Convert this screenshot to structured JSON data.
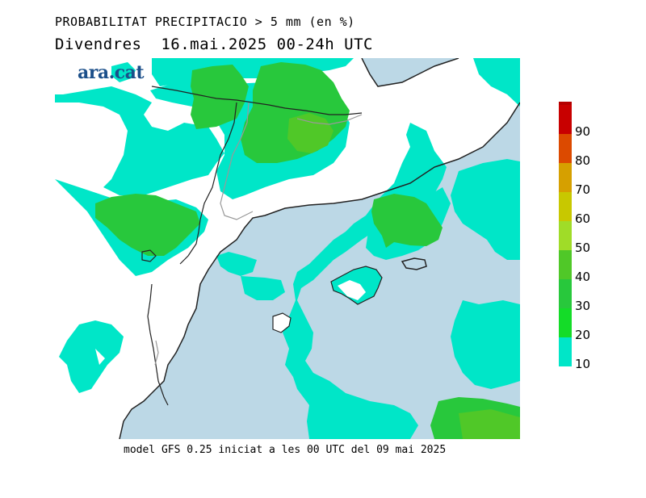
{
  "header": {
    "title": "PROBABILITAT PRECIPITACIO > 5 mm (en %)",
    "subtitle": "Divendres  16.mai.2025 00-24h UTC"
  },
  "logo": {
    "text": "ara.cat"
  },
  "legend": {
    "levels": [
      {
        "label": "90",
        "color": "#c80000"
      },
      {
        "label": "80",
        "color": "#dc4a00"
      },
      {
        "label": "70",
        "color": "#d6a000"
      },
      {
        "label": "60",
        "color": "#c8c800"
      },
      {
        "label": "50",
        "color": "#a0dc28"
      },
      {
        "label": "40",
        "color": "#50c828"
      },
      {
        "label": "30",
        "color": "#28c83c"
      },
      {
        "label": "20",
        "color": "#14dc28"
      },
      {
        "label": "10",
        "color": "#00e6c8"
      }
    ],
    "top_color": "#b40000"
  },
  "colors": {
    "sea": "#bcd8e6",
    "land_low": "#ffffff",
    "prob_10": "#00e6c8",
    "prob_20": "#28c83c",
    "prob_30": "#5cd030",
    "coast": "#222222",
    "border": "#888888"
  },
  "footer": {
    "text": "model GFS 0.25 iniciat a les 00 UTC del 09 mai 2025"
  }
}
